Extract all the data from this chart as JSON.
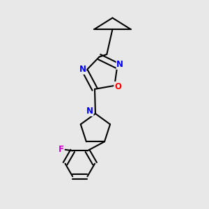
{
  "background_color": "#e8e8e8",
  "bond_color": "#000000",
  "bond_width": 1.5,
  "atom_colors": {
    "N": "#0000ff",
    "O": "#ff0000",
    "F": "#cc00cc",
    "C": "#000000"
  },
  "font_size": 8.5,
  "figsize": [
    3.0,
    3.0
  ],
  "dpi": 100
}
